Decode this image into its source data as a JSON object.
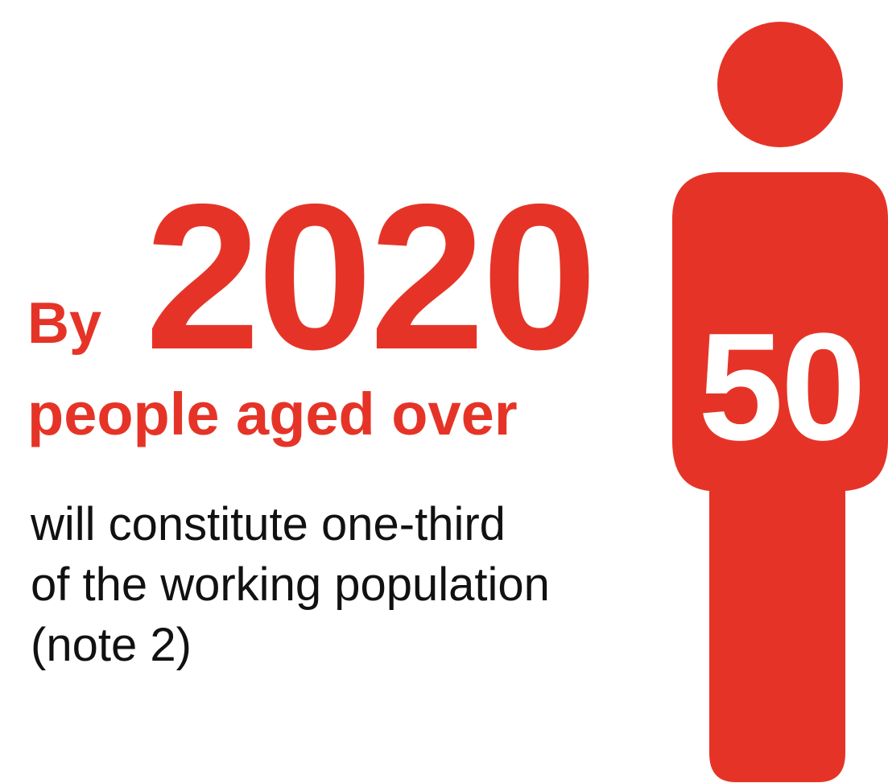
{
  "headline": {
    "by": "By",
    "year": "2020",
    "subject": "people aged over"
  },
  "figure": {
    "icon": "person-icon",
    "age": "50"
  },
  "body": {
    "lines": [
      "will constitute one-third",
      "of the working population",
      "(note 2)"
    ]
  },
  "colors": {
    "accent": "#E53427",
    "text": "#111111",
    "background": "#FFFFFF",
    "figure_label": "#FFFFFF"
  }
}
